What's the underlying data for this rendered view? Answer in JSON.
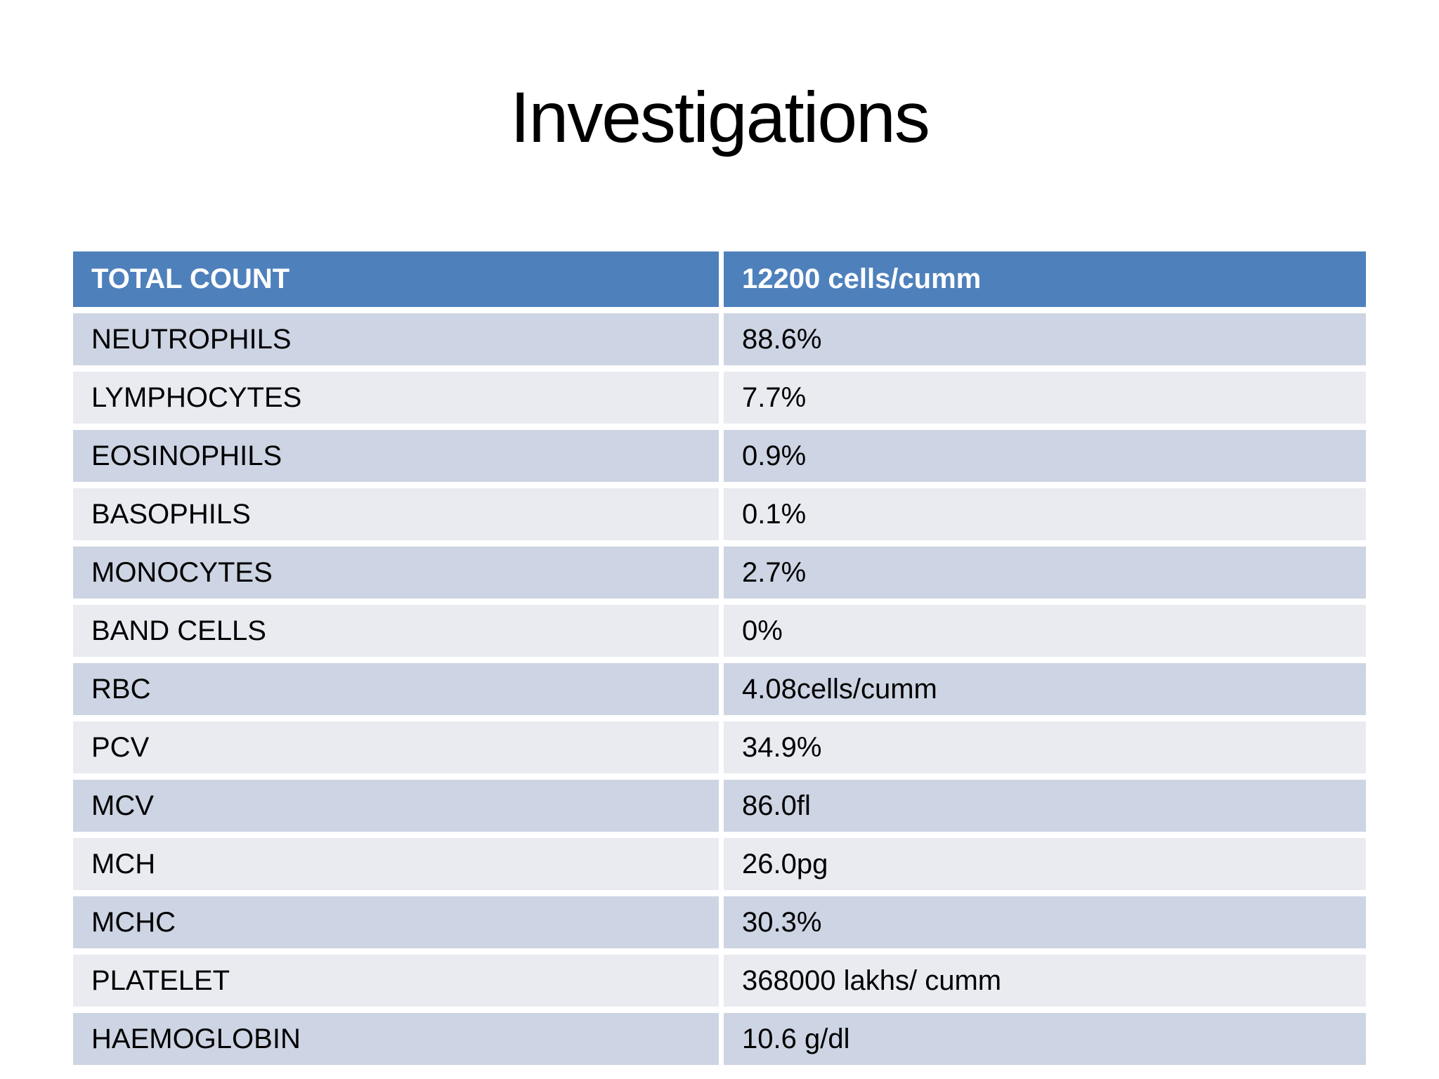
{
  "title": "Investigations",
  "table": {
    "header": {
      "label": "TOTAL COUNT",
      "value": "12200 cells/cumm"
    },
    "rows": [
      {
        "label": "NEUTROPHILS",
        "value": "88.6%"
      },
      {
        "label": "LYMPHOCYTES",
        "value": "7.7%"
      },
      {
        "label": "EOSINOPHILS",
        "value": "0.9%"
      },
      {
        "label": "BASOPHILS",
        "value": "0.1%"
      },
      {
        "label": "MONOCYTES",
        "value": "2.7%"
      },
      {
        "label": "BAND CELLS",
        "value": "0%"
      },
      {
        "label": "RBC",
        "value": "4.08cells/cumm"
      },
      {
        "label": "PCV",
        "value": "34.9%"
      },
      {
        "label": "MCV",
        "value": "86.0fl"
      },
      {
        "label": "MCH",
        "value": "26.0pg"
      },
      {
        "label": "MCHC",
        "value": "30.3%"
      },
      {
        "label": "PLATELET",
        "value": "368000 lakhs/ cumm"
      },
      {
        "label": "HAEMOGLOBIN",
        "value": "10.6 g/dl"
      }
    ]
  },
  "colors": {
    "slide_bg": "#FFFFFF",
    "title_text": "#000000",
    "header_bg": "#4E80BC",
    "header_text": "#FFFFFF",
    "row_odd_bg": "#CDD4E3",
    "row_even_bg": "#E9EBF1",
    "row_text": "#000000"
  }
}
